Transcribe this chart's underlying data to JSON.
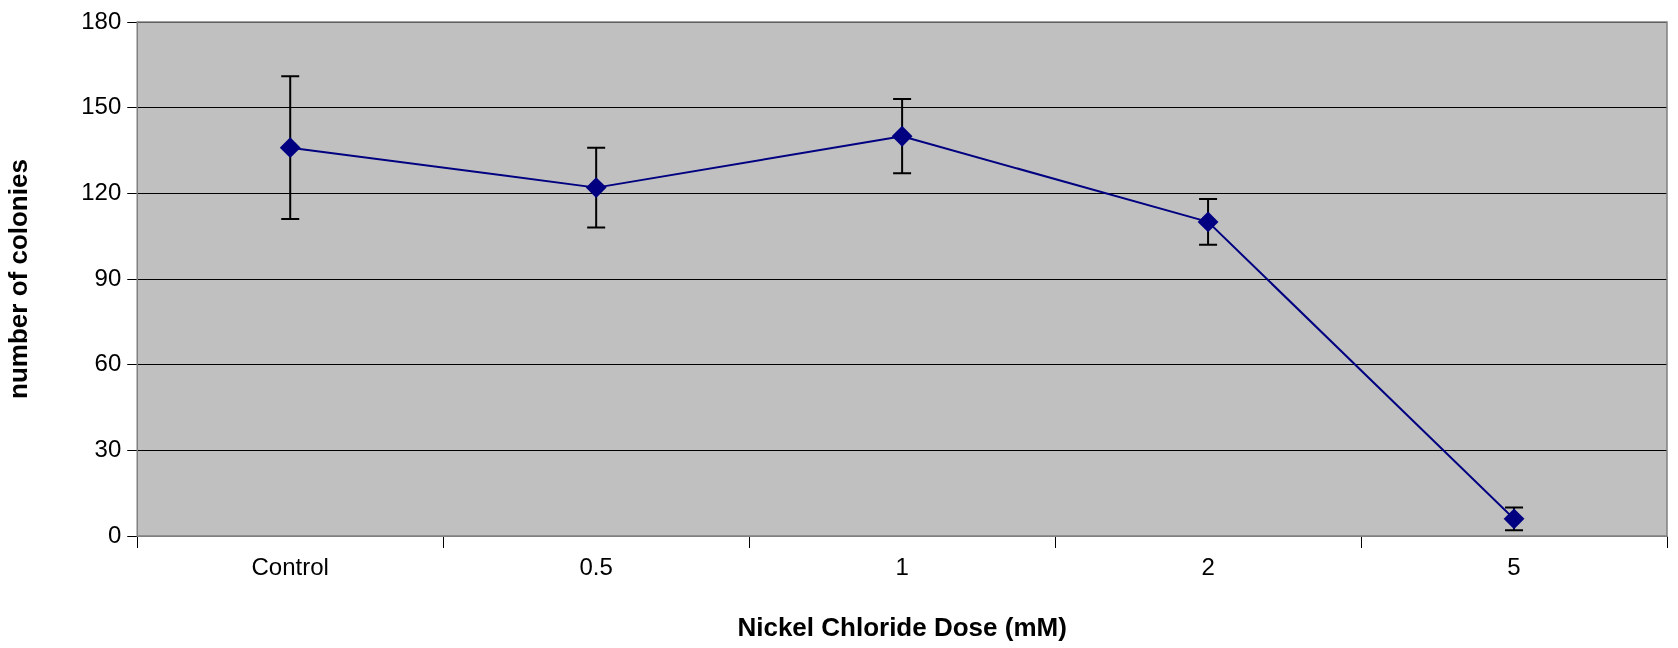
{
  "chart_data": {
    "type": "line",
    "xlabel": "Nickel Chloride Dose (mM)",
    "ylabel": "number of colonies",
    "categories": [
      "Control",
      "0.5",
      "1",
      "2",
      "5"
    ],
    "series": [
      {
        "color": "#000080",
        "values": [
          136,
          122,
          140,
          110,
          6
        ],
        "errors": [
          25,
          14,
          13,
          8,
          4
        ]
      }
    ],
    "ylim": [
      0,
      180
    ],
    "yticks": [
      0,
      30,
      60,
      90,
      120,
      150,
      180
    ],
    "grid": "y",
    "legend": false,
    "marker": "diamond",
    "line_style": "solid"
  }
}
